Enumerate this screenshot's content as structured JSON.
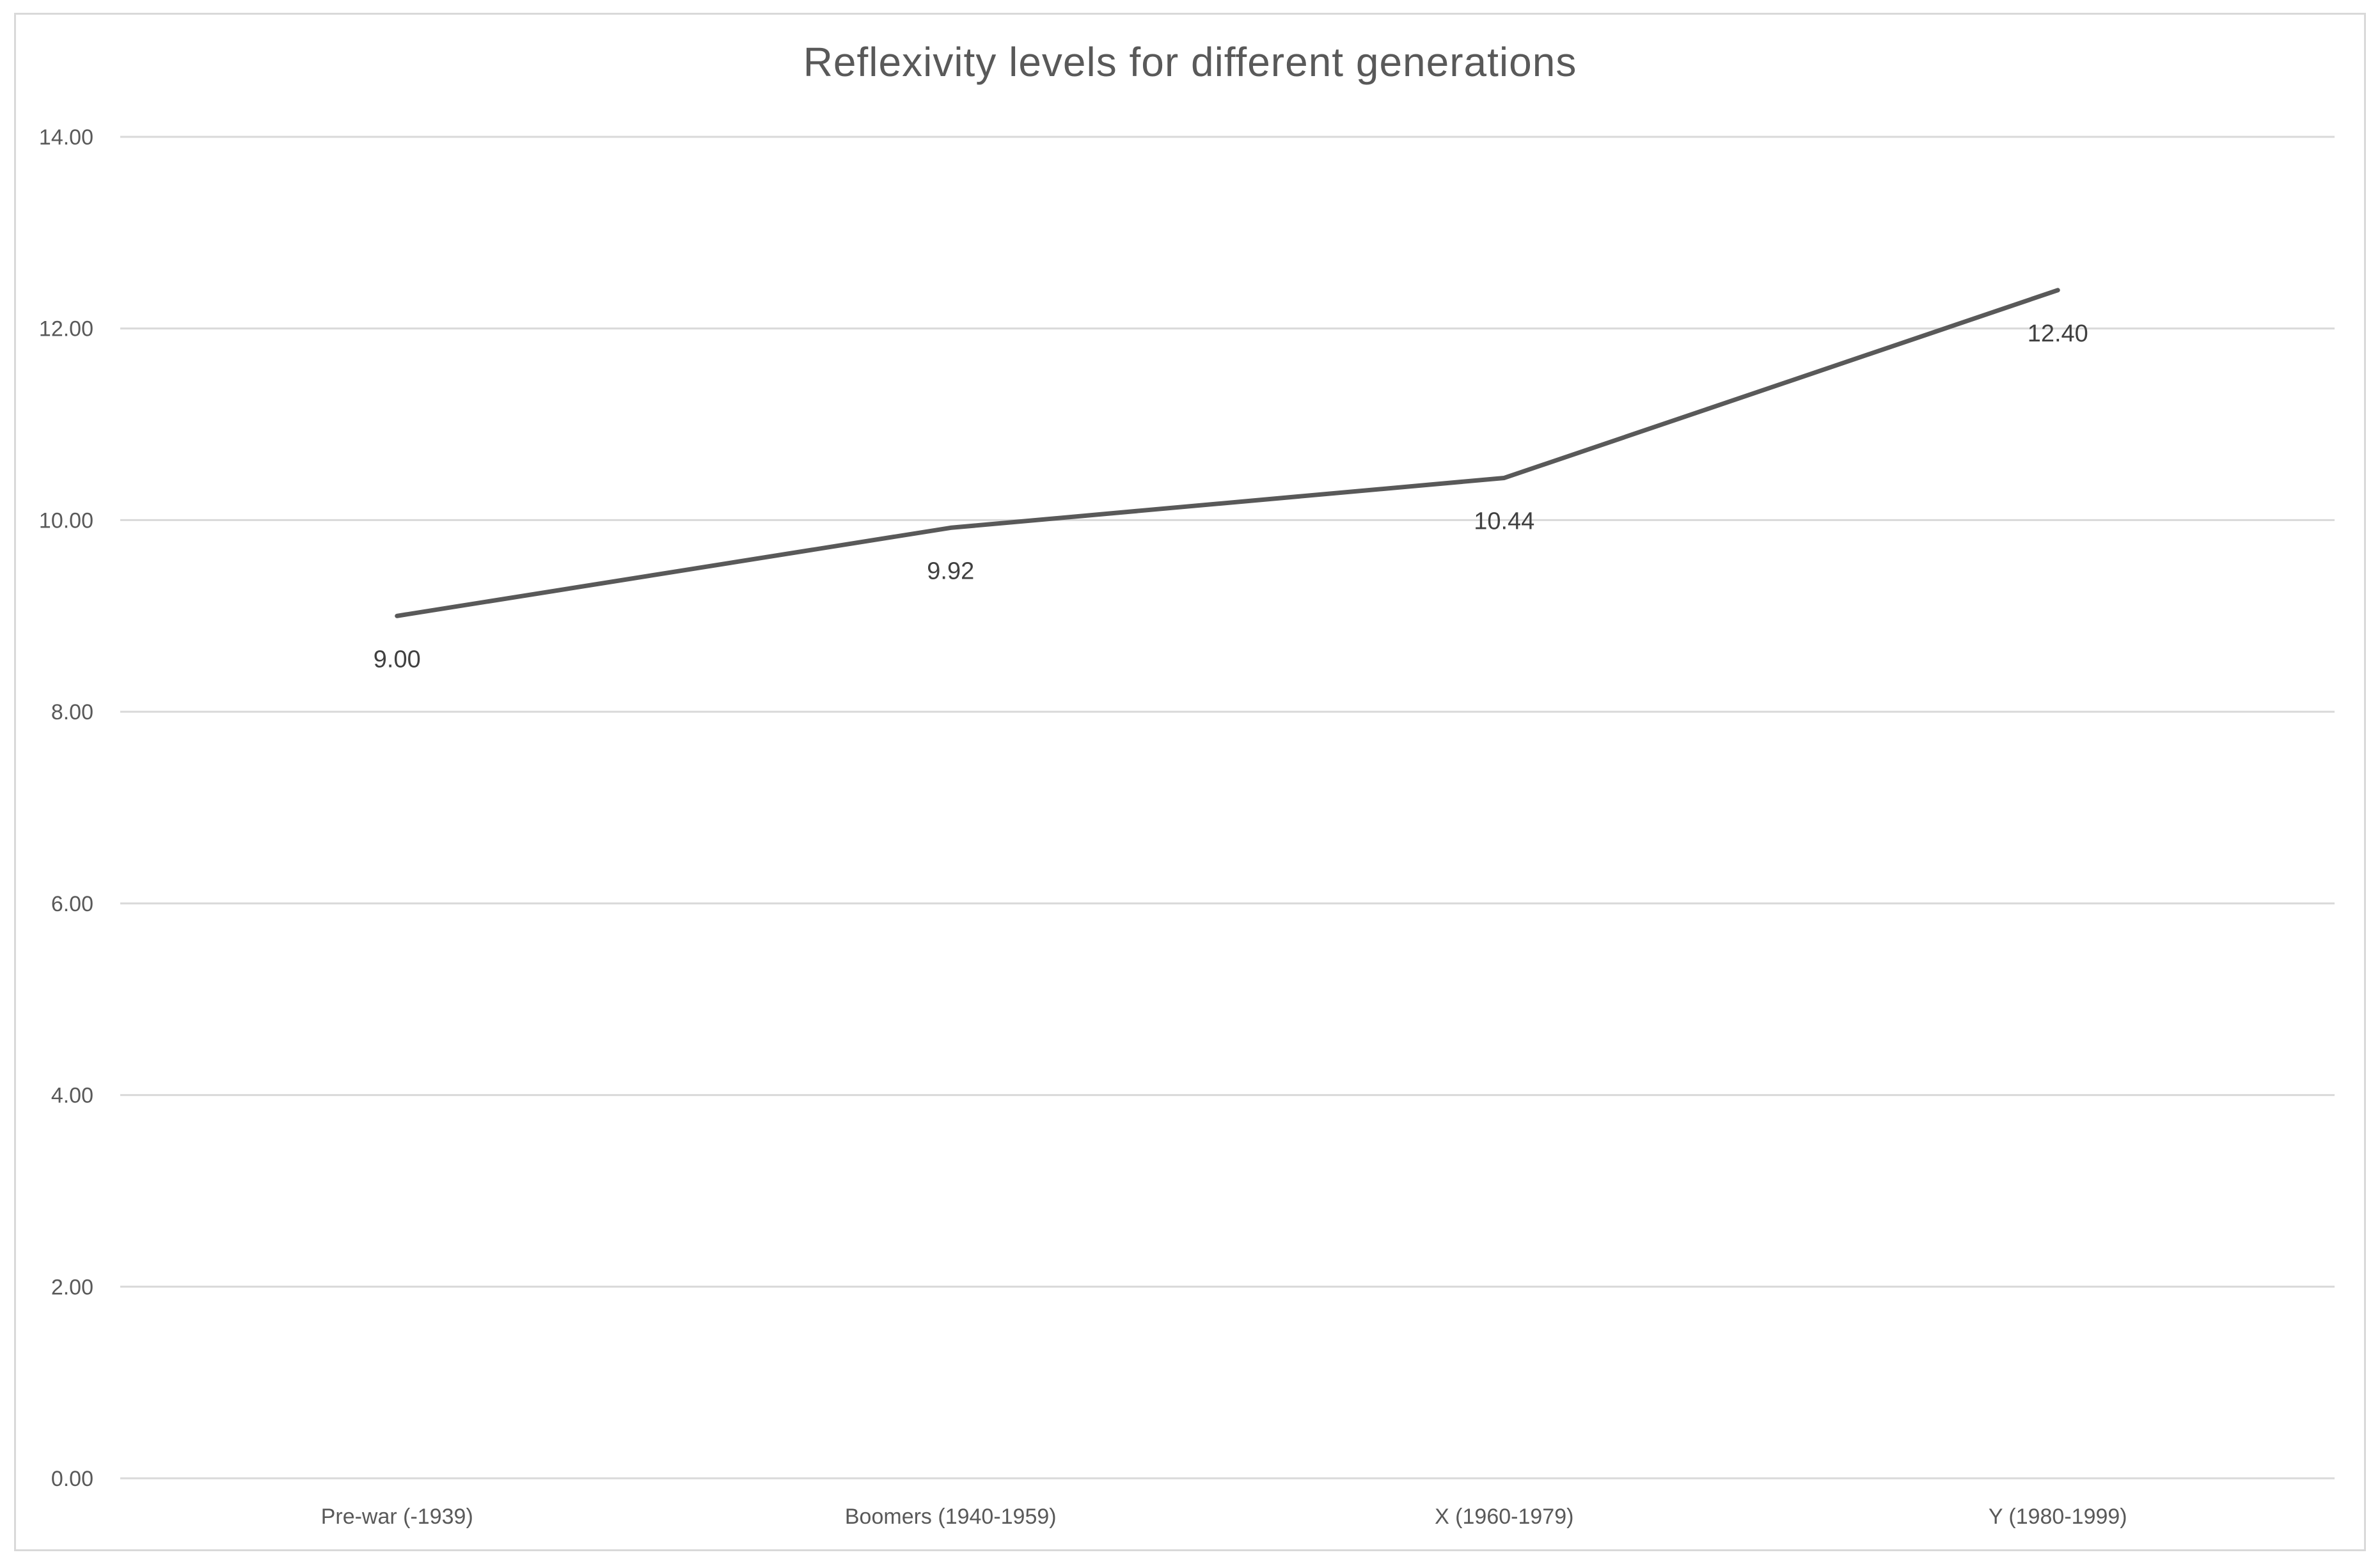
{
  "chart_data": {
    "type": "line",
    "title": "Reflexivity levels for different  generations",
    "xlabel": "",
    "ylabel": "",
    "categories": [
      "Pre-war (-1939)",
      "Boomers (1940-1959)",
      "X (1960-1979)",
      "Y (1980-1999)"
    ],
    "series": [
      {
        "values": [
          9.0,
          9.92,
          10.44,
          12.4
        ],
        "color": "#595959"
      }
    ],
    "data_labels": [
      "9.00",
      "9.92",
      "10.44",
      "12.40"
    ],
    "y_ticks": [
      "0.00",
      "2.00",
      "4.00",
      "6.00",
      "8.00",
      "10.00",
      "12.00",
      "14.00"
    ],
    "ylim": [
      0,
      14
    ],
    "grid": true,
    "legend": "none"
  }
}
